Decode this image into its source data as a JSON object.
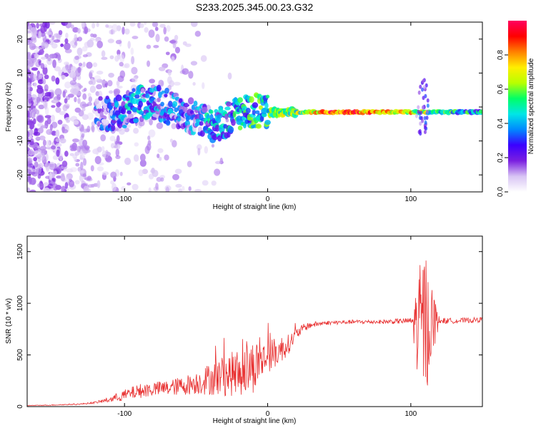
{
  "title": "S233.2025.345.00.23.G32",
  "chart_data": [
    {
      "type": "heatmap",
      "title": "S233.2025.345.00.23.G32",
      "xlabel": "Height of straight line (km)",
      "ylabel": "Frequency (Hz)",
      "xlim": [
        -168,
        150
      ],
      "ylim": [
        -25,
        25
      ],
      "xticks": [
        -100,
        0,
        100
      ],
      "yticks": [
        -20,
        -10,
        0,
        10,
        20
      ],
      "colorbar": {
        "label": "Normalized spectral amplitude",
        "range": [
          0,
          1
        ],
        "ticks": [
          "0.0",
          "0.2",
          "0.4",
          "0.6",
          "0.8"
        ],
        "tick_values": [
          0,
          0.2,
          0.4,
          0.6,
          0.8
        ],
        "colormap": [
          "#ffffff",
          "#d8c4f4",
          "#7a1fe0",
          "#3b00ff",
          "#0088ff",
          "#00e6e6",
          "#00ff66",
          "#b8ff00",
          "#ffee00",
          "#ff8000",
          "#ff0000",
          "#ff0060"
        ]
      },
      "ridge": {
        "x": [
          -110,
          -100,
          -90,
          -80,
          -70,
          -60,
          -50,
          -40,
          -30,
          -20,
          -10,
          0,
          10,
          20,
          30,
          40,
          60,
          80,
          100,
          110,
          120,
          150
        ],
        "freq": [
          -2.0,
          -1.0,
          1.0,
          1.5,
          0.0,
          -2.0,
          -3.0,
          -6.0,
          -4.0,
          -2.0,
          -1.0,
          -1.5,
          -1.5,
          -1.5,
          -1.5,
          -1.5,
          -1.5,
          -1.5,
          -1.5,
          -1.5,
          -1.5,
          -1.5
        ],
        "amplitude": [
          0.2,
          0.3,
          0.3,
          0.3,
          0.25,
          0.25,
          0.25,
          0.35,
          0.35,
          0.4,
          0.45,
          0.5,
          0.55,
          0.55,
          0.7,
          0.85,
          0.85,
          0.8,
          0.7,
          0.6,
          0.45,
          0.4
        ]
      }
    },
    {
      "type": "line",
      "xlabel": "Height of straight line (km)",
      "ylabel": "SNR (10 * v/v)",
      "xlim": [
        -168,
        150
      ],
      "ylim": [
        0,
        1650
      ],
      "xticks": [
        -100,
        0,
        100
      ],
      "yticks": [
        0,
        500,
        1000,
        1500
      ],
      "color": "#e83030",
      "series": [
        {
          "name": "SNR",
          "x": [
            -168,
            -150,
            -130,
            -120,
            -110,
            -100,
            -90,
            -80,
            -70,
            -60,
            -50,
            -40,
            -30,
            -20,
            -15,
            -10,
            -5,
            0,
            5,
            10,
            15,
            20,
            25,
            30,
            40,
            60,
            80,
            100,
            105,
            108,
            110,
            112,
            115,
            120,
            130,
            150
          ],
          "y": [
            10,
            15,
            25,
            40,
            70,
            110,
            150,
            170,
            180,
            200,
            230,
            270,
            300,
            330,
            360,
            390,
            440,
            480,
            520,
            560,
            610,
            700,
            760,
            790,
            810,
            820,
            820,
            830,
            780,
            800,
            820,
            810,
            830,
            830,
            830,
            840
          ],
          "noise_amplitude": [
            3,
            4,
            6,
            10,
            30,
            55,
            70,
            70,
            75,
            90,
            110,
            160,
            200,
            230,
            250,
            260,
            200,
            150,
            150,
            130,
            90,
            60,
            40,
            30,
            20,
            20,
            20,
            30,
            500,
            700,
            720,
            600,
            350,
            30,
            25,
            25
          ]
        }
      ]
    }
  ]
}
